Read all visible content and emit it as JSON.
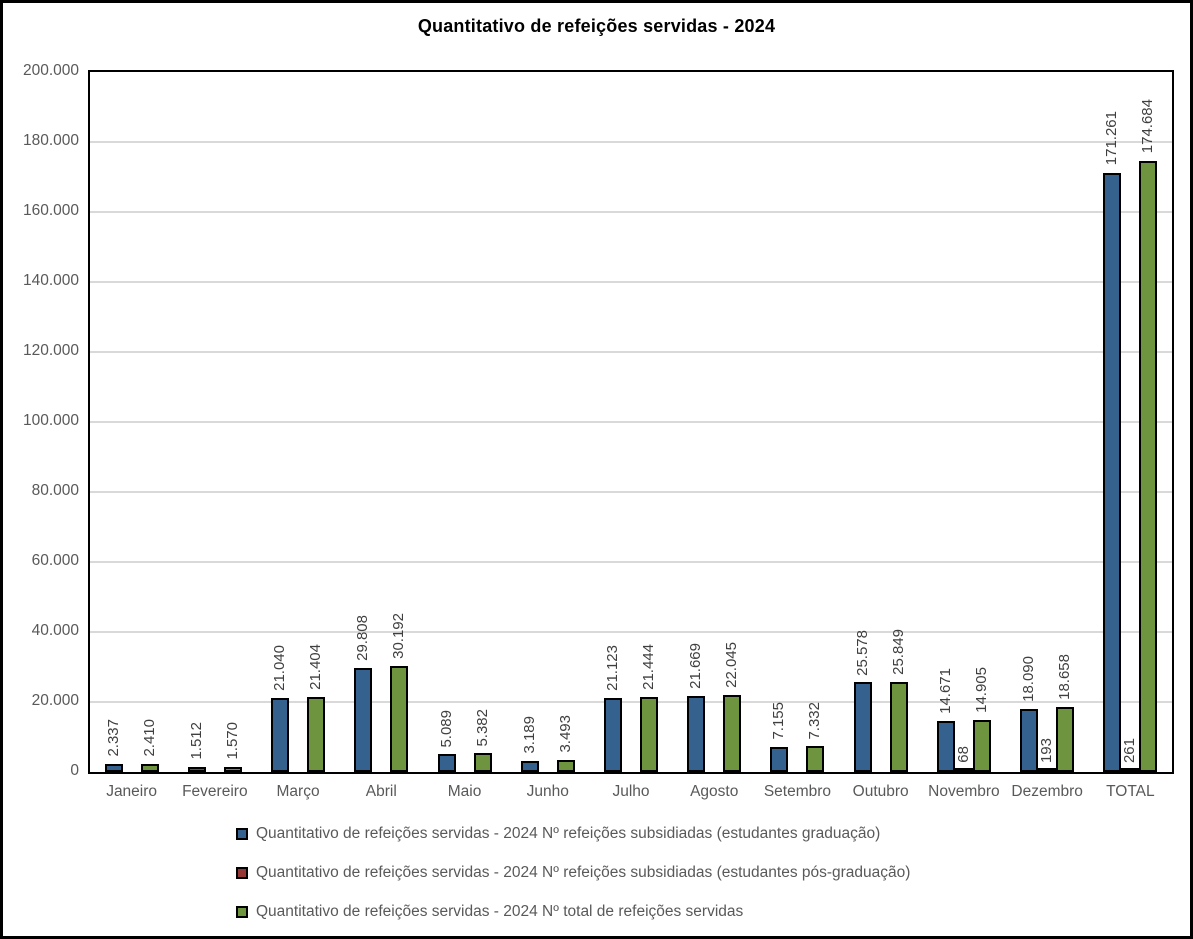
{
  "title": "Quantitativo de refeições servidas - 2024",
  "chart_data": {
    "type": "bar",
    "title": "Quantitativo de refeições servidas - 2024",
    "xlabel": "",
    "ylabel": "",
    "ylim": [
      0,
      200000
    ],
    "ytick_step": 20000,
    "grid": true,
    "legend_position": "bottom",
    "categories": [
      "Janeiro",
      "Fevereiro",
      "Março",
      "Abril",
      "Maio",
      "Junho",
      "Julho",
      "Agosto",
      "Setembro",
      "Outubro",
      "Novembro",
      "Dezembro",
      "TOTAL"
    ],
    "yticks": [
      {
        "value": 0,
        "label": "0"
      },
      {
        "value": 20000,
        "label": "20.000"
      },
      {
        "value": 40000,
        "label": "40.000"
      },
      {
        "value": 60000,
        "label": "60.000"
      },
      {
        "value": 80000,
        "label": "80.000"
      },
      {
        "value": 100000,
        "label": "100.000"
      },
      {
        "value": 120000,
        "label": "120.000"
      },
      {
        "value": 140000,
        "label": "140.000"
      },
      {
        "value": 160000,
        "label": "160.000"
      },
      {
        "value": 180000,
        "label": "180.000"
      },
      {
        "value": 200000,
        "label": "200.000"
      }
    ],
    "series": [
      {
        "name": "Quantitativo de refeições servidas - 2024 Nº refeições subsidiadas (estudantes graduação)",
        "color": "#35618e",
        "values": [
          2337,
          1512,
          21040,
          29808,
          5089,
          3189,
          21123,
          21669,
          7155,
          25578,
          14671,
          18090,
          171261
        ],
        "labels": [
          "2.337",
          "1.512",
          "21.040",
          "29.808",
          "5.089",
          "3.189",
          "21.123",
          "21.669",
          "7.155",
          "25.578",
          "14.671",
          "18.090",
          "171.261"
        ]
      },
      {
        "name": "Quantitativo de refeições servidas - 2024 Nº refeições subsidiadas (estudantes pós-graduação)",
        "color": "#953735",
        "values": [
          null,
          null,
          null,
          null,
          null,
          null,
          null,
          null,
          null,
          null,
          68,
          193,
          261
        ],
        "labels": [
          null,
          null,
          null,
          null,
          null,
          null,
          null,
          null,
          null,
          null,
          "68",
          "193",
          "261"
        ]
      },
      {
        "name": "Quantitativo de refeições servidas - 2024 Nº total de refeições servidas",
        "color": "#6f9440",
        "values": [
          2410,
          1570,
          21404,
          30192,
          5382,
          3493,
          21444,
          22045,
          7332,
          25849,
          14905,
          18658,
          174684
        ],
        "labels": [
          "2.410",
          "1.570",
          "21.404",
          "30.192",
          "5.382",
          "3.493",
          "21.444",
          "22.045",
          "7.332",
          "25.849",
          "14.905",
          "18.658",
          "174.684"
        ]
      }
    ]
  },
  "colors": {
    "grid": "#d9d9d9",
    "axis_text": "#595959",
    "data_label_text": "#3f3f3f",
    "plot_border": "#000000",
    "frame_border": "#000000",
    "background": "#ffffff"
  }
}
